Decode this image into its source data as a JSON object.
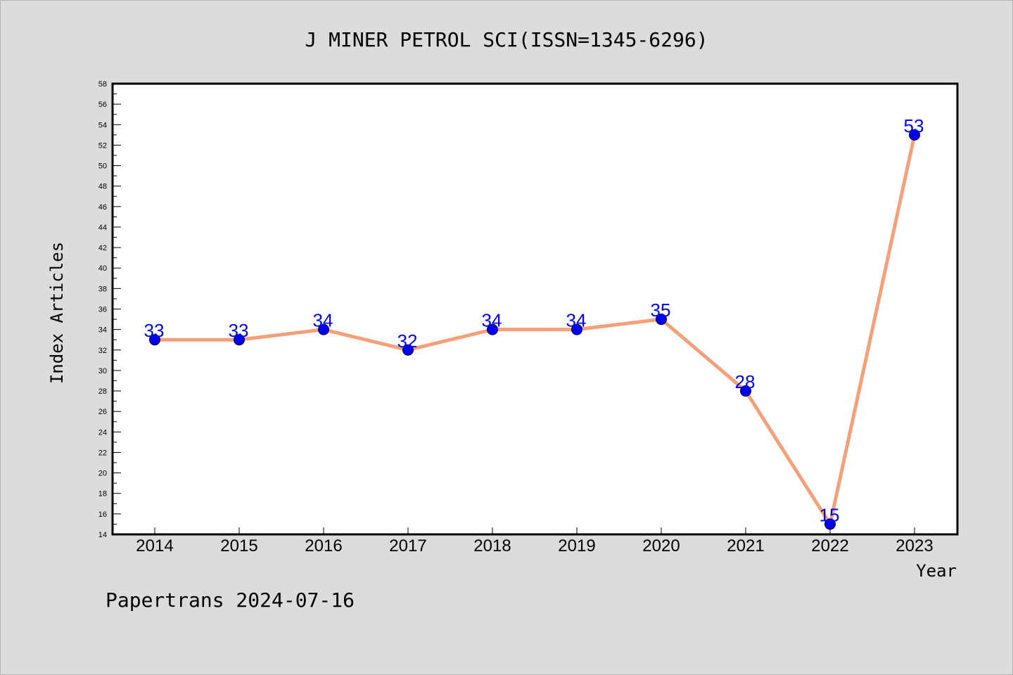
{
  "chart_data": {
    "type": "line",
    "title": "J MINER PETROL SCI(ISSN=1345-6296)",
    "xlabel": "Year",
    "ylabel": "Index Articles",
    "categories": [
      "2014",
      "2015",
      "2016",
      "2017",
      "2018",
      "2019",
      "2020",
      "2021",
      "2022",
      "2023"
    ],
    "values": [
      33,
      33,
      34,
      32,
      34,
      34,
      35,
      28,
      15,
      53
    ],
    "ylim": [
      14,
      58
    ],
    "y_tick_step": 2,
    "grid": false,
    "legend": "none",
    "line_color": "#f5a07a",
    "marker_color": "#0000ee",
    "label_color": "#0000ff"
  },
  "footer": "Papertrans 2024-07-16"
}
